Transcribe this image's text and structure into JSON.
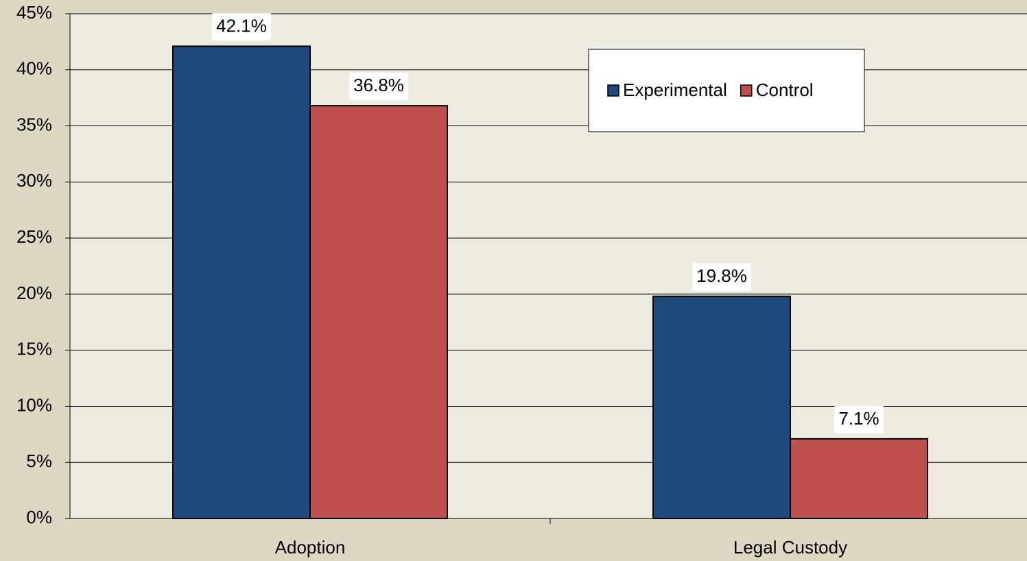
{
  "chart_data": {
    "type": "bar",
    "categories": [
      "Adoption",
      "Legal Custody"
    ],
    "series": [
      {
        "name": "Experimental",
        "color": "#1f497d",
        "values": [
          42.1,
          19.8
        ],
        "value_labels": [
          "42.1%",
          "19.8%"
        ]
      },
      {
        "name": "Control",
        "color": "#c0504d",
        "values": [
          36.8,
          7.1
        ],
        "value_labels": [
          "36.8%",
          "7.1%"
        ]
      }
    ],
    "ylim": [
      0,
      45
    ],
    "yticks": [
      {
        "value": 0,
        "label": "0%"
      },
      {
        "value": 5,
        "label": "5%"
      },
      {
        "value": 10,
        "label": "10%"
      },
      {
        "value": 15,
        "label": "15%"
      },
      {
        "value": 20,
        "label": "20%"
      },
      {
        "value": 25,
        "label": "25%"
      },
      {
        "value": 30,
        "label": "30%"
      },
      {
        "value": 35,
        "label": "35%"
      },
      {
        "value": 40,
        "label": "40%"
      },
      {
        "value": 45,
        "label": "45%"
      }
    ],
    "grid": true,
    "legend": "top-right"
  }
}
